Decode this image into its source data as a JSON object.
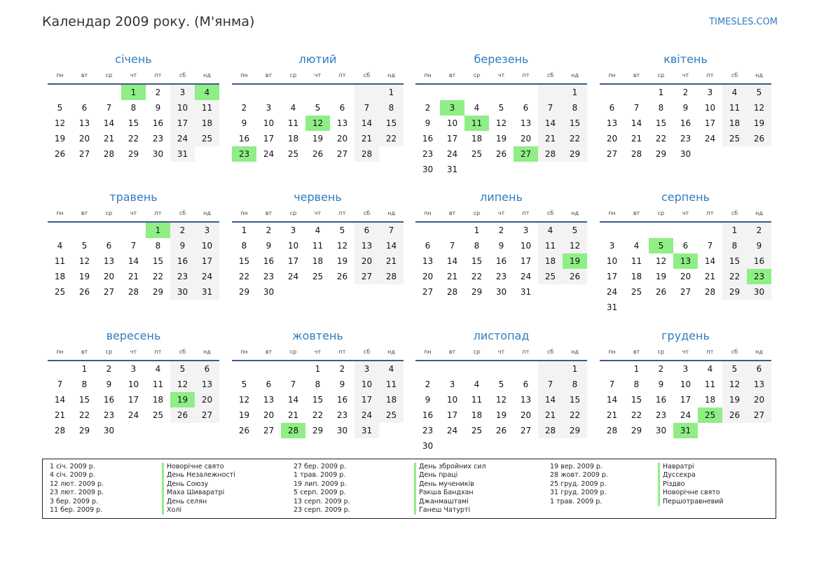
{
  "header": {
    "title": "Календар 2009 року. (М'янма)",
    "site": "TIMESLES.COM"
  },
  "weekdays": [
    "пн",
    "вт",
    "ср",
    "чт",
    "пт",
    "сб",
    "нд"
  ],
  "months": [
    {
      "name": "січень",
      "offset": 3,
      "days": 31,
      "holidays": [
        1,
        4
      ]
    },
    {
      "name": "лютий",
      "offset": 6,
      "days": 28,
      "holidays": [
        12,
        23
      ]
    },
    {
      "name": "березень",
      "offset": 6,
      "days": 31,
      "holidays": [
        3,
        11,
        27
      ]
    },
    {
      "name": "квітень",
      "offset": 2,
      "days": 30,
      "holidays": []
    },
    {
      "name": "травень",
      "offset": 4,
      "days": 31,
      "holidays": [
        1
      ]
    },
    {
      "name": "червень",
      "offset": 0,
      "days": 30,
      "holidays": []
    },
    {
      "name": "липень",
      "offset": 2,
      "days": 31,
      "holidays": [
        19
      ]
    },
    {
      "name": "серпень",
      "offset": 5,
      "days": 31,
      "holidays": [
        5,
        13,
        23
      ]
    },
    {
      "name": "вересень",
      "offset": 1,
      "days": 30,
      "holidays": [
        19
      ]
    },
    {
      "name": "жовтень",
      "offset": 3,
      "days": 31,
      "holidays": [
        28
      ]
    },
    {
      "name": "листопад",
      "offset": 6,
      "days": 30,
      "holidays": []
    },
    {
      "name": "грудень",
      "offset": 1,
      "days": 31,
      "holidays": [
        25,
        31
      ]
    }
  ],
  "legend": [
    [
      {
        "date": "1 січ. 2009 р.",
        "name": "Новорічне свято"
      },
      {
        "date": "4 січ. 2009 р.",
        "name": "День Незалежності"
      },
      {
        "date": "12 лют. 2009 р.",
        "name": "День Союзу"
      },
      {
        "date": "23 лют. 2009 р.",
        "name": "Маха Шиваратрі"
      },
      {
        "date": "3 бер. 2009 р.",
        "name": "День селян"
      },
      {
        "date": "11 бер. 2009 р.",
        "name": "Холі"
      }
    ],
    [
      {
        "date": "27 бер. 2009 р.",
        "name": "День збройних сил"
      },
      {
        "date": "1 трав. 2009 р.",
        "name": "День праці"
      },
      {
        "date": "19 лип. 2009 р.",
        "name": "День мучеників"
      },
      {
        "date": "5 серп. 2009 р.",
        "name": "Ракша Бандхан"
      },
      {
        "date": "13 серп. 2009 р.",
        "name": "Джанмаштамі"
      },
      {
        "date": "23 серп. 2009 р.",
        "name": "Ганеш Чатурті"
      }
    ],
    [
      {
        "date": "19 вер. 2009 р.",
        "name": "Навратрі"
      },
      {
        "date": "28 жовт. 2009 р.",
        "name": "Дуссехра"
      },
      {
        "date": "25 груд. 2009 р.",
        "name": "Різдво"
      },
      {
        "date": "31 груд. 2009 р.",
        "name": "Новорічне свято"
      },
      {
        "date": "1 трав. 2009 р.",
        "name": "Першотравневий"
      }
    ]
  ]
}
